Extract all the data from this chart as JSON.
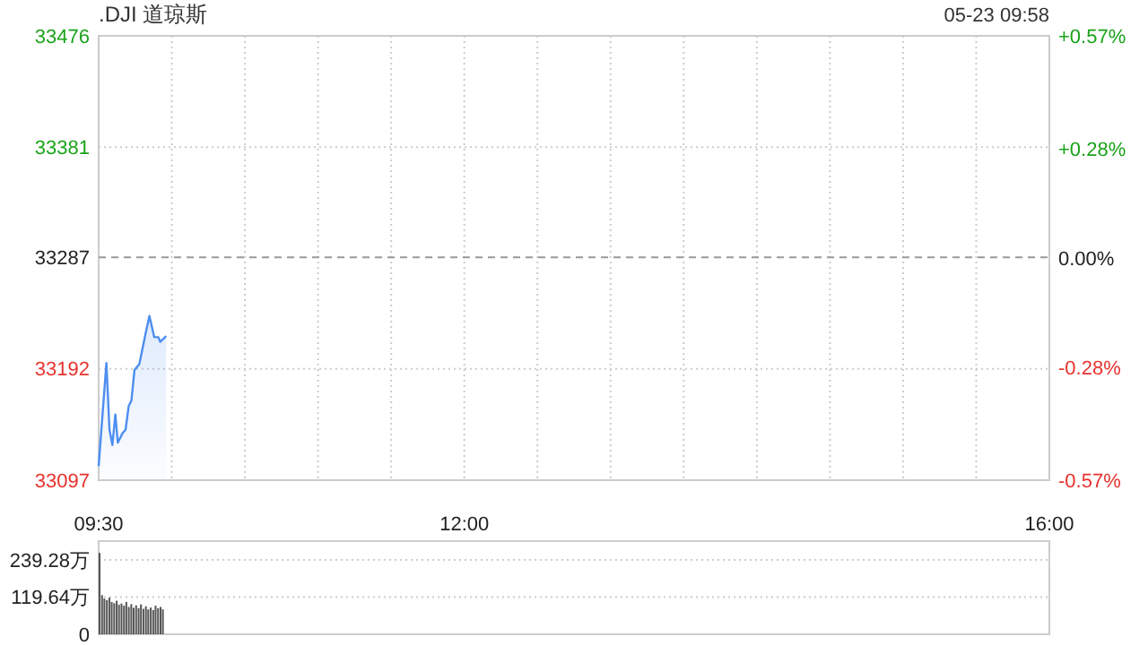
{
  "chart_data": [
    {
      "type": "area",
      "title": ".DJI 道琼斯",
      "annotations": [
        "05-23 09:58"
      ],
      "x": [
        9.5,
        9.553,
        9.574,
        9.594,
        9.614,
        9.631,
        9.663,
        9.684,
        9.705,
        9.724,
        9.745,
        9.778,
        9.819,
        9.847,
        9.88,
        9.908,
        9.921,
        9.962
      ],
      "series": [
        {
          "color": "#4d8ef0",
          "values": [
            33109,
            33197,
            33140,
            33127,
            33153,
            33129,
            33137,
            33140,
            33160,
            33165,
            33191,
            33196,
            33221,
            33237,
            33219,
            33219,
            33215,
            33220
          ]
        }
      ],
      "xlim": [
        9.5,
        16
      ],
      "xticks": [
        {
          "value": 9.5,
          "label": "09:30"
        },
        {
          "value": 10,
          "label": null
        },
        {
          "value": 10.5,
          "label": null
        },
        {
          "value": 11,
          "label": null
        },
        {
          "value": 11.5,
          "label": null
        },
        {
          "value": 12,
          "label": "12:00"
        },
        {
          "value": 12.5,
          "label": null
        },
        {
          "value": 13,
          "label": null
        },
        {
          "value": 13.5,
          "label": null
        },
        {
          "value": 14,
          "label": null
        },
        {
          "value": 14.5,
          "label": null
        },
        {
          "value": 15,
          "label": null
        },
        {
          "value": 15.5,
          "label": null
        },
        {
          "value": 16,
          "label": "16:00"
        }
      ],
      "ylim": [
        33097,
        33476
      ],
      "yticks": [
        33097,
        33192,
        33287,
        33381,
        33476
      ],
      "y2lim": [
        -0.57,
        0.57
      ],
      "y2ticks": [
        {
          "value": -0.57,
          "label": "-0.57%"
        },
        {
          "value": -0.28,
          "label": "-0.28%"
        },
        {
          "value": 0,
          "label": "0.00%"
        },
        {
          "value": 0.28,
          "label": "+0.28%"
        },
        {
          "value": 0.57,
          "label": "+0.57%"
        }
      ],
      "ref_lines": [
        {
          "axis": "y",
          "value": 33287,
          "line_style": "dashed",
          "color": "#999999"
        }
      ],
      "grid": true
    },
    {
      "type": "bar",
      "x": [
        9.5,
        9.517,
        9.533,
        9.55,
        9.567,
        9.583,
        9.6,
        9.617,
        9.633,
        9.65,
        9.667,
        9.683,
        9.7,
        9.717,
        9.733,
        9.75,
        9.767,
        9.783,
        9.8,
        9.817,
        9.833,
        9.85,
        9.867,
        9.883,
        9.9,
        9.917,
        9.933
      ],
      "values": [
        262,
        126,
        115,
        110,
        118,
        104,
        100,
        108,
        95,
        99,
        92,
        104,
        88,
        97,
        85,
        93,
        84,
        96,
        82,
        90,
        80,
        86,
        78,
        92,
        84,
        88,
        80
      ],
      "color": "#555555",
      "xlim": [
        9.5,
        16
      ],
      "ylim": [
        0,
        300
      ],
      "yticks": [
        0,
        {
          "value": 119.64,
          "label": "119.64万"
        },
        {
          "value": 239.28,
          "label": "239.28万"
        }
      ],
      "grid": "y",
      "tick_labels": "y"
    }
  ]
}
